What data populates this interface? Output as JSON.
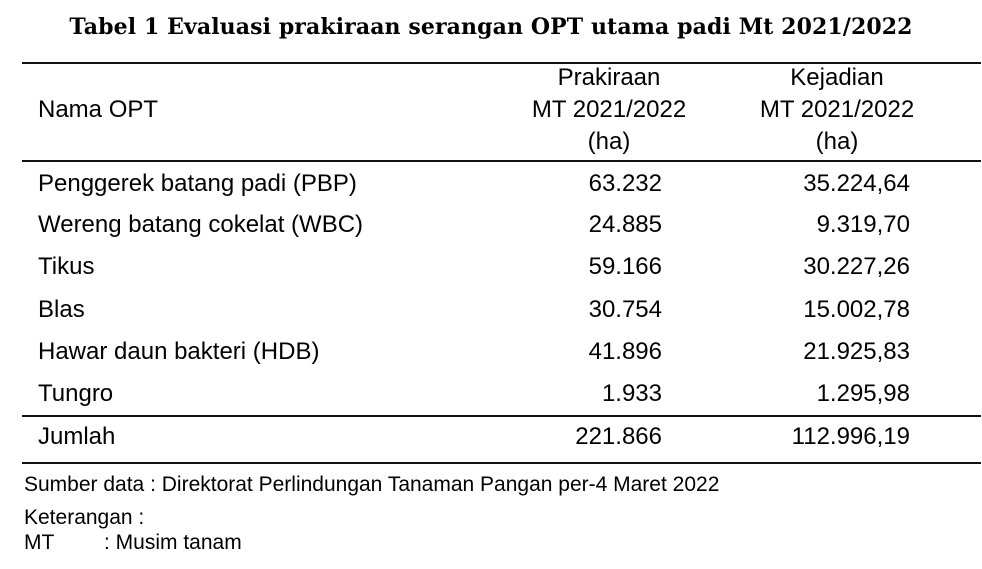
{
  "title": "Tabel 1 Evaluasi prakiraan serangan OPT utama padi Mt 2021/2022",
  "header": {
    "name": "Nama OPT",
    "prakiraan": [
      "Prakiraan",
      "MT 2021/2022",
      "(ha)"
    ],
    "kejadian": [
      "Kejadian",
      "MT 2021/2022",
      "(ha)"
    ]
  },
  "rows": [
    {
      "name": "Penggerek batang padi (PBP)",
      "prakiraan": "63.232",
      "kejadian": "35.224,64"
    },
    {
      "name": "Wereng batang cokelat (WBC)",
      "prakiraan": "24.885",
      "kejadian": "9.319,70"
    },
    {
      "name": "Tikus",
      "prakiraan": "59.166",
      "kejadian": "30.227,26"
    },
    {
      "name": "Blas",
      "prakiraan": "30.754",
      "kejadian": "15.002,78"
    },
    {
      "name": "Hawar daun bakteri (HDB)",
      "prakiraan": "41.896",
      "kejadian": "21.925,83"
    },
    {
      "name": "Tungro",
      "prakiraan": "1.933",
      "kejadian": "1.295,98"
    }
  ],
  "total": {
    "name": "Jumlah",
    "prakiraan": "221.866",
    "kejadian": "112.996,19"
  },
  "notes": {
    "source": "Sumber data : Direktorat Perlindungan Tanaman Pangan per-4 Maret 2022",
    "keterangan": "Keterangan :",
    "mt_abbr": "MT",
    "mt_desc": ": Musim tanam"
  }
}
